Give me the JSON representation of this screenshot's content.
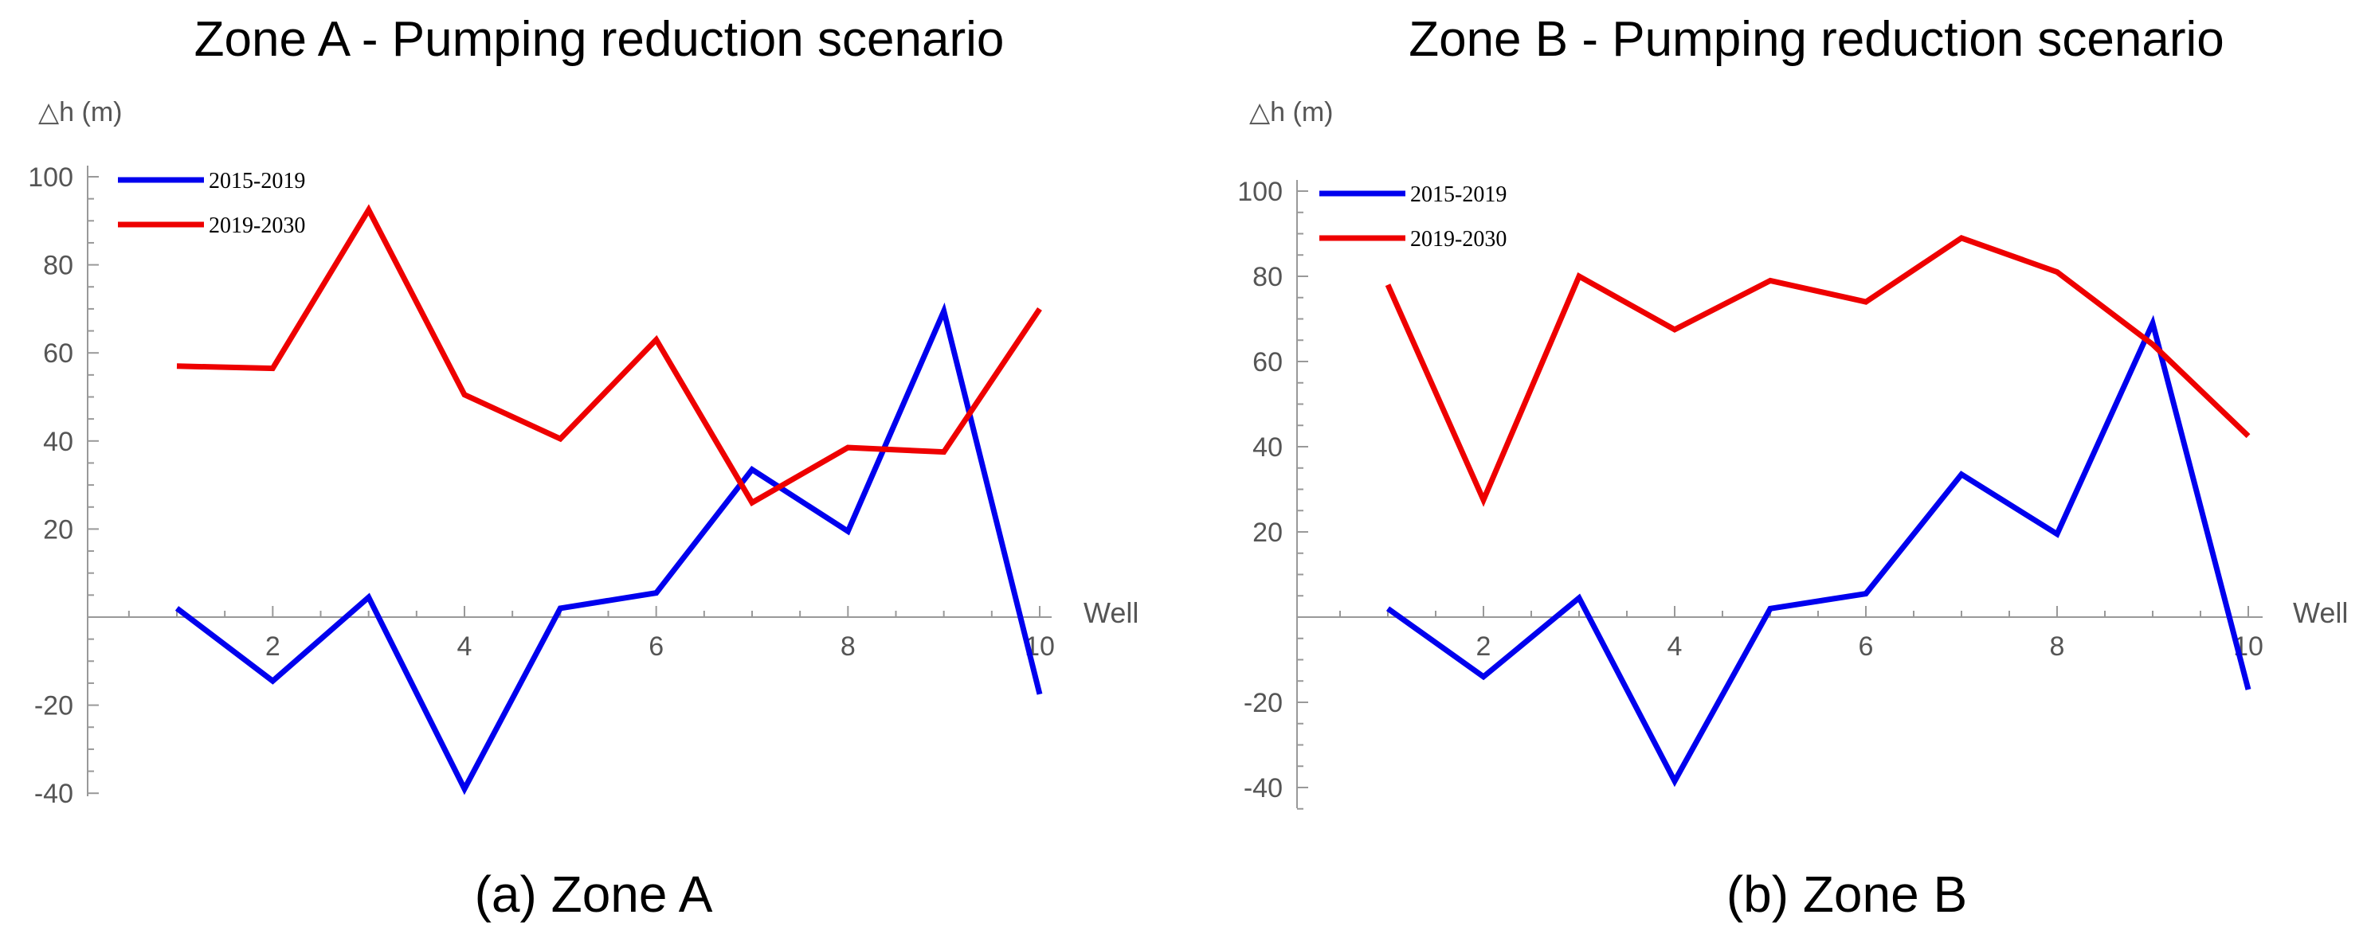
{
  "chart_data": [
    {
      "type": "line",
      "title": "Zone A - Pumping reduction scenario",
      "caption": "(a)  Zone A",
      "ylabel": "△h  (m)",
      "xlabel": "Well",
      "x": [
        1,
        2,
        3,
        4,
        5,
        6,
        7,
        8,
        9,
        10
      ],
      "xticks": [
        "2",
        "4",
        "6",
        "8",
        "10"
      ],
      "xtick_values": [
        2,
        4,
        6,
        8,
        10
      ],
      "yticks": [
        "-40",
        "-20",
        "20",
        "40",
        "60",
        "80",
        "100"
      ],
      "ytick_values": [
        -40,
        -20,
        20,
        40,
        60,
        80,
        100
      ],
      "xlim": [
        0.03,
        10.3
      ],
      "ylim": [
        -42,
        100
      ],
      "legend_position": "top-left",
      "series": [
        {
          "name": "2015-2019",
          "color": "#0000ee",
          "values": [
            2,
            -14.5,
            4.5,
            -39,
            2,
            5.5,
            33.5,
            19.5,
            69.5,
            -17.5
          ]
        },
        {
          "name": "2019-2030",
          "color": "#ee0000",
          "values": [
            57,
            56.5,
            92.5,
            50.5,
            40.5,
            63,
            26,
            38.5,
            37.5,
            70
          ]
        }
      ]
    },
    {
      "type": "line",
      "title": "Zone B - Pumping reduction scenario",
      "caption": "(b)  Zone B",
      "ylabel": "△h  (m)",
      "xlabel": "Well",
      "x": [
        1,
        2,
        3,
        4,
        5,
        6,
        7,
        8,
        9,
        10
      ],
      "xticks": [
        "2",
        "4",
        "6",
        "8",
        "10"
      ],
      "xtick_values": [
        2,
        4,
        6,
        8,
        10
      ],
      "yticks": [
        "-40",
        "-20",
        "20",
        "40",
        "60",
        "80",
        "100"
      ],
      "ytick_values": [
        -40,
        -20,
        20,
        40,
        60,
        80,
        100
      ],
      "xlim": [
        0.03,
        10.3
      ],
      "ylim": [
        -45,
        100
      ],
      "legend_position": "top-left",
      "series": [
        {
          "name": "2015-2019",
          "color": "#0000ee",
          "values": [
            2,
            -14,
            4.5,
            -38.5,
            2,
            5.5,
            33.5,
            19.5,
            69,
            -17
          ]
        },
        {
          "name": "2019-2030",
          "color": "#ee0000",
          "values": [
            78,
            27.5,
            80,
            67.5,
            79,
            74,
            89,
            81,
            64,
            42.5
          ]
        }
      ]
    }
  ]
}
